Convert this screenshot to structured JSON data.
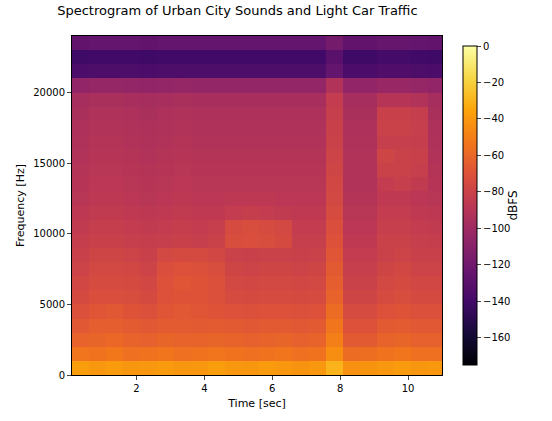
{
  "chart_data": {
    "type": "heatmap",
    "title": "Spectrogram of Urban City Sounds and Light Car Traffic",
    "x_label": "Time [sec]",
    "y_label": "Frequency [Hz]",
    "x": [
      0.35,
      0.85,
      1.35,
      1.85,
      2.35,
      2.85,
      3.35,
      3.85,
      4.35,
      4.85,
      5.35,
      5.85,
      6.35,
      6.85,
      7.35,
      7.85,
      8.35,
      8.85,
      9.35,
      9.85,
      10.35,
      10.85
    ],
    "y": [
      500,
      1500,
      2500,
      3500,
      4500,
      5500,
      6500,
      7500,
      8500,
      9500,
      10500,
      11500,
      12500,
      13500,
      14500,
      15500,
      16500,
      17500,
      18500,
      19500,
      20500,
      21500,
      22500,
      23500
    ],
    "z": [
      [
        -38,
        -40,
        -39,
        -41,
        -40,
        -39,
        -41,
        -40,
        -38,
        -40,
        -41,
        -39,
        -40,
        -42,
        -40,
        -30,
        -43,
        -42,
        -40,
        -39,
        -41,
        -40
      ],
      [
        -54,
        -55,
        -53,
        -56,
        -55,
        -54,
        -56,
        -55,
        -54,
        -55,
        -56,
        -55,
        -54,
        -56,
        -55,
        -44,
        -58,
        -57,
        -55,
        -54,
        -56,
        -56
      ],
      [
        -62,
        -61,
        -60,
        -62,
        -63,
        -61,
        -62,
        -62,
        -61,
        -62,
        -63,
        -62,
        -61,
        -63,
        -62,
        -50,
        -66,
        -66,
        -62,
        -61,
        -63,
        -63
      ],
      [
        -67,
        -64,
        -64,
        -65,
        -67,
        -65,
        -65,
        -66,
        -65,
        -66,
        -67,
        -66,
        -66,
        -67,
        -66,
        -54,
        -70,
        -70,
        -66,
        -65,
        -67,
        -67
      ],
      [
        -71,
        -68,
        -67,
        -69,
        -71,
        -68,
        -67,
        -68,
        -69,
        -70,
        -71,
        -70,
        -70,
        -71,
        -70,
        -58,
        -74,
        -74,
        -70,
        -69,
        -71,
        -71
      ],
      [
        -75,
        -72,
        -72,
        -73,
        -75,
        -70,
        -69,
        -69,
        -71,
        -74,
        -75,
        -74,
        -74,
        -75,
        -74,
        -62,
        -78,
        -78,
        -74,
        -73,
        -75,
        -75
      ],
      [
        -77,
        -74,
        -74,
        -75,
        -77,
        -70,
        -68,
        -69,
        -71,
        -76,
        -77,
        -76,
        -76,
        -77,
        -76,
        -64,
        -80,
        -80,
        -76,
        -75,
        -77,
        -77
      ],
      [
        -79,
        -76,
        -76,
        -77,
        -79,
        -72,
        -70,
        -71,
        -73,
        -78,
        -79,
        -78,
        -78,
        -79,
        -78,
        -66,
        -82,
        -82,
        -78,
        -77,
        -79,
        -79
      ],
      [
        -81,
        -78,
        -78,
        -79,
        -81,
        -76,
        -75,
        -75,
        -77,
        -80,
        -81,
        -80,
        -80,
        -81,
        -80,
        -68,
        -84,
        -84,
        -80,
        -79,
        -81,
        -81
      ],
      [
        -83,
        -81,
        -81,
        -82,
        -83,
        -82,
        -81,
        -82,
        -80,
        -73,
        -72,
        -73,
        -75,
        -82,
        -82,
        -70,
        -86,
        -86,
        -80,
        -80,
        -82,
        -83
      ],
      [
        -85,
        -83,
        -83,
        -84,
        -85,
        -84,
        -83,
        -84,
        -82,
        -74,
        -73,
        -74,
        -76,
        -84,
        -84,
        -72,
        -88,
        -88,
        -82,
        -82,
        -84,
        -85
      ],
      [
        -87,
        -85,
        -85,
        -86,
        -87,
        -86,
        -85,
        -86,
        -86,
        -84,
        -83,
        -84,
        -85,
        -86,
        -86,
        -74,
        -89,
        -89,
        -84,
        -84,
        -86,
        -87
      ],
      [
        -89,
        -87,
        -87,
        -88,
        -89,
        -88,
        -87,
        -88,
        -88,
        -87,
        -87,
        -87,
        -88,
        -88,
        -88,
        -76,
        -91,
        -91,
        -86,
        -86,
        -88,
        -89
      ],
      [
        -90,
        -88,
        -88,
        -89,
        -90,
        -89,
        -88,
        -89,
        -89,
        -89,
        -89,
        -89,
        -89,
        -89,
        -89,
        -77,
        -92,
        -92,
        -84,
        -82,
        -85,
        -90
      ],
      [
        -91,
        -89,
        -89,
        -90,
        -91,
        -90,
        -89,
        -90,
        -90,
        -90,
        -90,
        -90,
        -90,
        -90,
        -90,
        -78,
        -92,
        -92,
        -80,
        -80,
        -82,
        -91
      ],
      [
        -92,
        -90,
        -90,
        -91,
        -92,
        -91,
        -90,
        -91,
        -91,
        -91,
        -91,
        -91,
        -91,
        -91,
        -91,
        -79,
        -92,
        -92,
        -78,
        -80,
        -81,
        -92
      ],
      [
        -93,
        -91,
        -91,
        -92,
        -93,
        -92,
        -91,
        -92,
        -92,
        -92,
        -92,
        -92,
        -92,
        -92,
        -92,
        -80,
        -93,
        -93,
        -82,
        -82,
        -83,
        -93
      ],
      [
        -94,
        -92,
        -92,
        -93,
        -94,
        -93,
        -92,
        -93,
        -93,
        -93,
        -93,
        -93,
        -93,
        -93,
        -93,
        -81,
        -94,
        -94,
        -80,
        -80,
        -82,
        -94
      ],
      [
        -95,
        -93,
        -93,
        -94,
        -95,
        -94,
        -93,
        -94,
        -94,
        -94,
        -94,
        -94,
        -94,
        -94,
        -94,
        -82,
        -95,
        -95,
        -81,
        -81,
        -83,
        -95
      ],
      [
        -97,
        -95,
        -95,
        -96,
        -97,
        -96,
        -95,
        -96,
        -96,
        -96,
        -96,
        -96,
        -96,
        -96,
        -96,
        -84,
        -97,
        -97,
        -90,
        -90,
        -92,
        -97
      ],
      [
        -106,
        -104,
        -104,
        -105,
        -106,
        -105,
        -104,
        -105,
        -105,
        -105,
        -105,
        -105,
        -105,
        -105,
        -105,
        -92,
        -106,
        -106,
        -103,
        -103,
        -104,
        -106
      ],
      [
        -136,
        -135,
        -135,
        -135,
        -136,
        -135,
        -135,
        -135,
        -135,
        -135,
        -135,
        -135,
        -135,
        -135,
        -135,
        -125,
        -136,
        -136,
        -134,
        -134,
        -135,
        -136
      ],
      [
        -141,
        -140,
        -140,
        -140,
        -141,
        -140,
        -140,
        -140,
        -140,
        -140,
        -140,
        -140,
        -140,
        -140,
        -140,
        -130,
        -141,
        -141,
        -139,
        -139,
        -140,
        -141
      ],
      [
        -126,
        -125,
        -125,
        -125,
        -126,
        -125,
        -125,
        -125,
        -125,
        -125,
        -125,
        -125,
        -125,
        -125,
        -125,
        -118,
        -126,
        -126,
        -124,
        -124,
        -125,
        -126
      ]
    ],
    "xlim": [
      0.1,
      11.0
    ],
    "ylim": [
      0,
      24000
    ],
    "xticks": [
      2,
      4,
      6,
      8,
      10
    ],
    "yticks": [
      0,
      5000,
      10000,
      15000,
      20000
    ],
    "colorbar": {
      "title": "dBFS",
      "range": [
        -175,
        0
      ],
      "ticks": [
        {
          "value": 0,
          "label": "0"
        },
        {
          "value": -20,
          "label": "−20"
        },
        {
          "value": -40,
          "label": "−40"
        },
        {
          "value": -60,
          "label": "−60"
        },
        {
          "value": -80,
          "label": "−80"
        },
        {
          "value": -100,
          "label": "−100"
        },
        {
          "value": -120,
          "label": "−120"
        },
        {
          "value": -140,
          "label": "−140"
        },
        {
          "value": -160,
          "label": "−160"
        }
      ]
    }
  }
}
